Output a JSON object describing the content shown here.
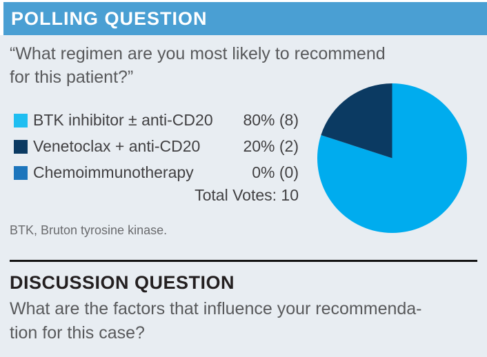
{
  "header": {
    "title": "POLLING QUESTION",
    "bar_color": "#4A9FD3"
  },
  "poll": {
    "question_line1": "“What regimen are you most likely to recommend",
    "question_line2": "for this patient?”",
    "options": [
      {
        "label": "BTK inhibitor ± anti-CD20",
        "result": "80% (8)",
        "swatch_color": "#1FBEF1"
      },
      {
        "label": "Venetoclax + anti-CD20",
        "result": "20% (2)",
        "swatch_color": "#0B3A62"
      },
      {
        "label": "Chemoimmunotherapy",
        "result": "0% (0)",
        "swatch_color": "#1C75BC"
      }
    ],
    "total_votes": "Total Votes: 10",
    "footnote": "BTK, Bruton tyrosine kinase."
  },
  "chart_data": {
    "type": "pie",
    "title": "",
    "labels": [
      "BTK inhibitor ± anti-CD20",
      "Venetoclax + anti-CD20",
      "Chemoimmunotherapy"
    ],
    "values": [
      80,
      20,
      0
    ],
    "counts": [
      8,
      2,
      0
    ],
    "total_votes": 10,
    "colors": [
      "#00ACEE",
      "#0B3A62",
      "#1C75BC"
    ],
    "start_angle_deg": -90,
    "direction": "clockwise",
    "legend_position": "left-of-chart"
  },
  "discussion": {
    "title": "DISCUSSION QUESTION",
    "line1": "What are the factors that influence your recommenda-",
    "line2": "tion for this case?"
  },
  "colors": {
    "content_background": "#E8EDF2",
    "body_text": "#58595B",
    "legend_text": "#414042",
    "heading_text": "#231F20"
  }
}
